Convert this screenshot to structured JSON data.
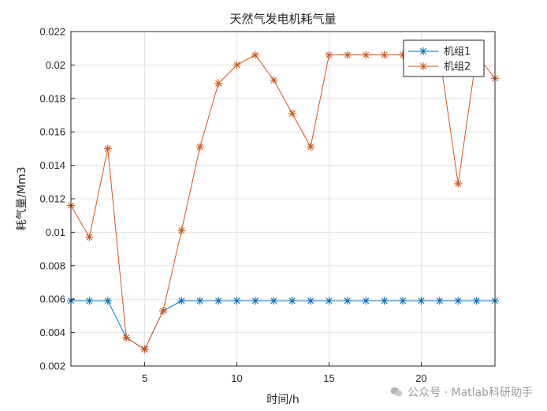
{
  "chart_data": {
    "type": "line",
    "title": "天然气发电机耗气量",
    "xlabel": "时间/h",
    "ylabel": "耗气量/Mm3",
    "xlim": [
      1,
      24
    ],
    "ylim": [
      0.002,
      0.022
    ],
    "xticks": [
      5,
      10,
      15,
      20
    ],
    "yticks": [
      0.002,
      0.004,
      0.006,
      0.008,
      0.01,
      0.012,
      0.014,
      0.016,
      0.018,
      0.02,
      0.022
    ],
    "ytick_labels": [
      "0.002",
      "0.004",
      "0.006",
      "0.008",
      "0.01",
      "0.012",
      "0.014",
      "0.016",
      "0.018",
      "0.02",
      "0.022"
    ],
    "grid": true,
    "legend_position": "top-right",
    "x": [
      1,
      2,
      3,
      4,
      5,
      6,
      7,
      8,
      9,
      10,
      11,
      12,
      13,
      14,
      15,
      16,
      17,
      18,
      19,
      20,
      21,
      22,
      23,
      24
    ],
    "series": [
      {
        "name": "机组1",
        "color": "#0072BD",
        "marker": "asterisk",
        "values": [
          0.0059,
          0.0059,
          0.0059,
          0.0037,
          0.003,
          0.0053,
          0.0059,
          0.0059,
          0.0059,
          0.0059,
          0.0059,
          0.0059,
          0.0059,
          0.0059,
          0.0059,
          0.0059,
          0.0059,
          0.0059,
          0.0059,
          0.0059,
          0.0059,
          0.0059,
          0.0059,
          0.0059
        ]
      },
      {
        "name": "机组2",
        "color": "#D95319",
        "marker": "asterisk",
        "values": [
          0.0116,
          0.0097,
          0.015,
          0.0037,
          0.003,
          0.0053,
          0.0101,
          0.0151,
          0.0189,
          0.02,
          0.0206,
          0.0191,
          0.0171,
          0.0151,
          0.0206,
          0.0206,
          0.0206,
          0.0206,
          0.0206,
          0.0206,
          0.0206,
          0.0129,
          0.0206,
          0.0192
        ]
      }
    ]
  },
  "watermark": {
    "icon": "wechat-icon",
    "text": "公众号 · Matlab科研助手"
  }
}
